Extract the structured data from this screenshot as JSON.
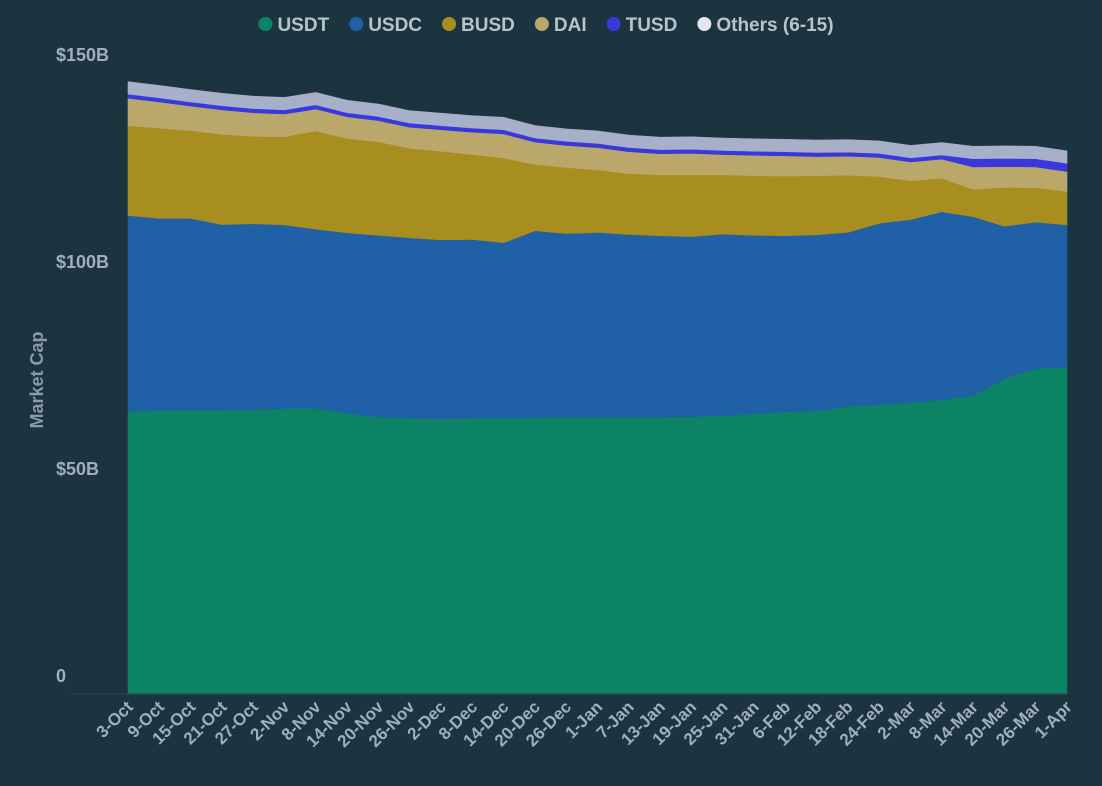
{
  "chart_data": {
    "type": "area",
    "stacked": true,
    "title": "",
    "xlabel": "",
    "ylabel": "Market Cap",
    "ylim": [
      0,
      150
    ],
    "y_ticks": [
      {
        "value": 0,
        "label": "0"
      },
      {
        "value": 50,
        "label": "$50B"
      },
      {
        "value": 100,
        "label": "$100B"
      },
      {
        "value": 150,
        "label": "$150B"
      }
    ],
    "x_labels": [
      "3-Oct",
      "9-Oct",
      "15-Oct",
      "21-Oct",
      "27-Oct",
      "2-Nov",
      "8-Nov",
      "14-Nov",
      "20-Nov",
      "26-Nov",
      "2-Dec",
      "8-Dec",
      "14-Dec",
      "20-Dec",
      "26-Dec",
      "1-Jan",
      "7-Jan",
      "13-Jan",
      "19-Jan",
      "25-Jan",
      "31-Jan",
      "6-Feb",
      "12-Feb",
      "18-Feb",
      "24-Feb",
      "2-Mar",
      "8-Mar",
      "14-Mar",
      "20-Mar",
      "26-Mar",
      "1-Apr"
    ],
    "legend_position": "top-center",
    "series": [
      {
        "name": "USDT",
        "color": "#0b8364",
        "values": [
          68.3,
          68.5,
          68.5,
          68.5,
          68.7,
          69.0,
          69.0,
          67.8,
          66.9,
          66.6,
          66.5,
          66.6,
          66.7,
          66.8,
          66.9,
          66.9,
          66.9,
          66.9,
          67.0,
          67.2,
          67.7,
          68.2,
          68.4,
          69.5,
          69.9,
          70.4,
          71.1,
          72.1,
          76.2,
          78.6,
          79.0
        ]
      },
      {
        "name": "USDC",
        "color": "#2060a6",
        "values": [
          47.3,
          46.4,
          46.4,
          44.9,
          44.9,
          44.3,
          43.3,
          43.6,
          43.9,
          43.6,
          43.2,
          43.2,
          42.3,
          45.1,
          44.3,
          44.6,
          44.1,
          43.8,
          43.5,
          43.9,
          43.1,
          42.5,
          42.5,
          42.0,
          43.8,
          44.2,
          45.4,
          43.2,
          36.8,
          35.4,
          34.3
        ]
      },
      {
        "name": "BUSD",
        "color": "#a88e1e",
        "values": [
          21.7,
          21.8,
          21.2,
          21.8,
          21.1,
          21.3,
          23.7,
          22.8,
          22.6,
          21.6,
          21.4,
          20.5,
          20.5,
          16.0,
          16.0,
          15.1,
          14.7,
          14.7,
          14.9,
          14.3,
          14.4,
          14.4,
          14.3,
          13.8,
          11.3,
          9.4,
          8.1,
          6.6,
          9.4,
          8.3,
          8.1
        ]
      },
      {
        "name": "DAI",
        "color": "#b9a86a",
        "values": [
          6.6,
          6.3,
          5.9,
          5.9,
          5.7,
          5.5,
          5.3,
          5.2,
          5.1,
          5.1,
          5.2,
          5.4,
          5.8,
          5.4,
          5.3,
          5.4,
          5.3,
          5.1,
          5.2,
          4.9,
          4.9,
          4.9,
          4.6,
          4.6,
          4.6,
          4.5,
          4.6,
          5.4,
          5.0,
          5.0,
          4.8
        ]
      },
      {
        "name": "TUSD",
        "color": "#3838dc",
        "values": [
          1.0,
          1.0,
          1.0,
          1.0,
          1.0,
          1.0,
          1.0,
          1.0,
          1.0,
          1.0,
          1.0,
          1.0,
          1.0,
          1.0,
          1.0,
          1.0,
          1.0,
          1.0,
          1.0,
          1.0,
          1.0,
          1.0,
          1.0,
          1.0,
          1.0,
          1.0,
          1.0,
          2.0,
          2.0,
          2.0,
          2.0
        ]
      },
      {
        "name": "Others (6-15)",
        "color": "#a8afc8",
        "legend_color": "#e4e6f2",
        "values": [
          3.0,
          3.0,
          3.0,
          3.0,
          3.0,
          3.0,
          3.0,
          3.0,
          3.0,
          3.0,
          3.0,
          3.0,
          3.0,
          3.0,
          3.0,
          3.0,
          3.0,
          3.0,
          3.0,
          3.0,
          3.0,
          3.0,
          3.0,
          3.0,
          3.0,
          3.0,
          3.0,
          3.0,
          3.0,
          3.0,
          3.0
        ]
      }
    ]
  }
}
